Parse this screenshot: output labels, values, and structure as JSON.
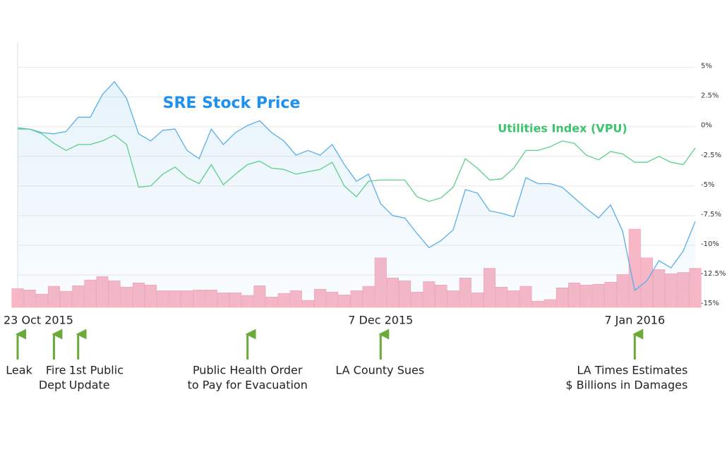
{
  "chart_data": {
    "type": "line",
    "categories": [
      "23 Oct 2015",
      null,
      null,
      null,
      null,
      null,
      null,
      null,
      null,
      null,
      null,
      null,
      null,
      null,
      null,
      null,
      null,
      null,
      null,
      null,
      null,
      null,
      null,
      null,
      null,
      null,
      null,
      null,
      null,
      null,
      "7 Dec 2015",
      null,
      null,
      null,
      null,
      null,
      null,
      null,
      null,
      null,
      null,
      null,
      null,
      null,
      null,
      null,
      null,
      null,
      null,
      null,
      null,
      "7 Jan 2016",
      null,
      null,
      null,
      null,
      null
    ],
    "series": [
      {
        "name": "SRE Stock Price",
        "color": "#5aafe6",
        "area": true,
        "values": [
          -0.1,
          -0.2,
          -0.5,
          -0.6,
          -0.4,
          0.8,
          0.8,
          2.7,
          3.8,
          2.4,
          -0.6,
          -1.2,
          -0.3,
          -0.2,
          -2.0,
          -2.7,
          -0.2,
          -1.5,
          -0.5,
          0.1,
          0.5,
          -0.5,
          -1.2,
          -2.4,
          -2.0,
          -2.4,
          -1.5,
          -3.2,
          -4.6,
          -4.0,
          -6.5,
          -7.5,
          -7.7,
          -9.0,
          -10.2,
          -9.6,
          -8.7,
          -5.3,
          -5.6,
          -7.1,
          -7.3,
          -7.6,
          -4.3,
          -4.8,
          -4.8,
          -5.1,
          -6.0,
          -6.9,
          -7.7,
          -6.6,
          -8.8,
          -13.8,
          -13.0,
          -11.3,
          -11.9,
          -10.5,
          -8.0
        ]
      },
      {
        "name": "Utilities Index (VPU)",
        "color": "#5ccf8a",
        "area": false,
        "values": [
          -0.2,
          -0.2,
          -0.6,
          -1.4,
          -2.0,
          -1.5,
          -1.5,
          -1.2,
          -0.7,
          -1.5,
          -5.1,
          -5.0,
          -4.0,
          -3.4,
          -4.3,
          -4.8,
          -3.2,
          -4.9,
          -4.0,
          -3.2,
          -2.9,
          -3.5,
          -3.6,
          -4.0,
          -3.8,
          -3.6,
          -3.0,
          -5.0,
          -5.9,
          -4.6,
          -4.5,
          -4.5,
          -4.5,
          -5.9,
          -6.3,
          -6.0,
          -5.1,
          -2.7,
          -3.5,
          -4.5,
          -4.4,
          -3.5,
          -2.0,
          -2.0,
          -1.7,
          -1.2,
          -1.4,
          -2.4,
          -2.8,
          -2.1,
          -2.3,
          -3.0,
          -3.0,
          -2.5,
          -3.0,
          -3.2,
          -1.8
        ]
      }
    ],
    "volume": {
      "color": "#f8b7c6",
      "axis": "y2",
      "values": [
        6.1,
        5.6,
        4.0,
        7.0,
        5.1,
        7.2,
        9.4,
        10.7,
        9.1,
        6.7,
        8.3,
        7.5,
        5.3,
        5.3,
        5.3,
        5.6,
        5.6,
        4.5,
        4.5,
        3.5,
        7.2,
        2.9,
        4.3,
        5.3,
        1.6,
        5.9,
        4.8,
        3.7,
        5.3,
        7.0,
        17.9,
        10.2,
        9.1,
        4.8,
        8.8,
        7.5,
        5.3,
        10.2,
        4.5,
        13.9,
        6.7,
        5.3,
        7.0,
        1.3,
        1.9,
        6.4,
        8.3,
        7.5,
        7.8,
        8.6,
        11.5,
        28.9,
        17.9,
        13.4,
        11.8,
        12.3,
        13.9
      ]
    },
    "ylim": [
      -15,
      7
    ],
    "yticks": [
      {
        "value": 5,
        "label": "5%"
      },
      {
        "value": 2.5,
        "label": "2.5%"
      },
      {
        "value": 0,
        "label": "0%"
      },
      {
        "value": -2.5,
        "label": "-2.5%"
      },
      {
        "value": -5,
        "label": "-5%"
      },
      {
        "value": -7.5,
        "label": "-7.5%"
      },
      {
        "value": -10,
        "label": "-10%"
      },
      {
        "value": -12.5,
        "label": "-12.5%"
      },
      {
        "value": -15,
        "label": "-15%"
      }
    ],
    "y2lim": [
      0,
      100
    ],
    "grid": true,
    "events": [
      {
        "index": 0,
        "label": [
          "Leak"
        ]
      },
      {
        "index": 3,
        "label": [
          "Fire",
          "Dept"
        ]
      },
      {
        "index": 5,
        "label": [
          "1st Public",
          "Update"
        ]
      },
      {
        "index": 19,
        "label": [
          "Public Health Order",
          "to Pay for Evacuation"
        ]
      },
      {
        "index": 30,
        "label": [
          "LA County Sues"
        ]
      },
      {
        "index": 51,
        "label": [
          "LA Times Estimates",
          "$ Billions in Damages"
        ]
      }
    ]
  }
}
